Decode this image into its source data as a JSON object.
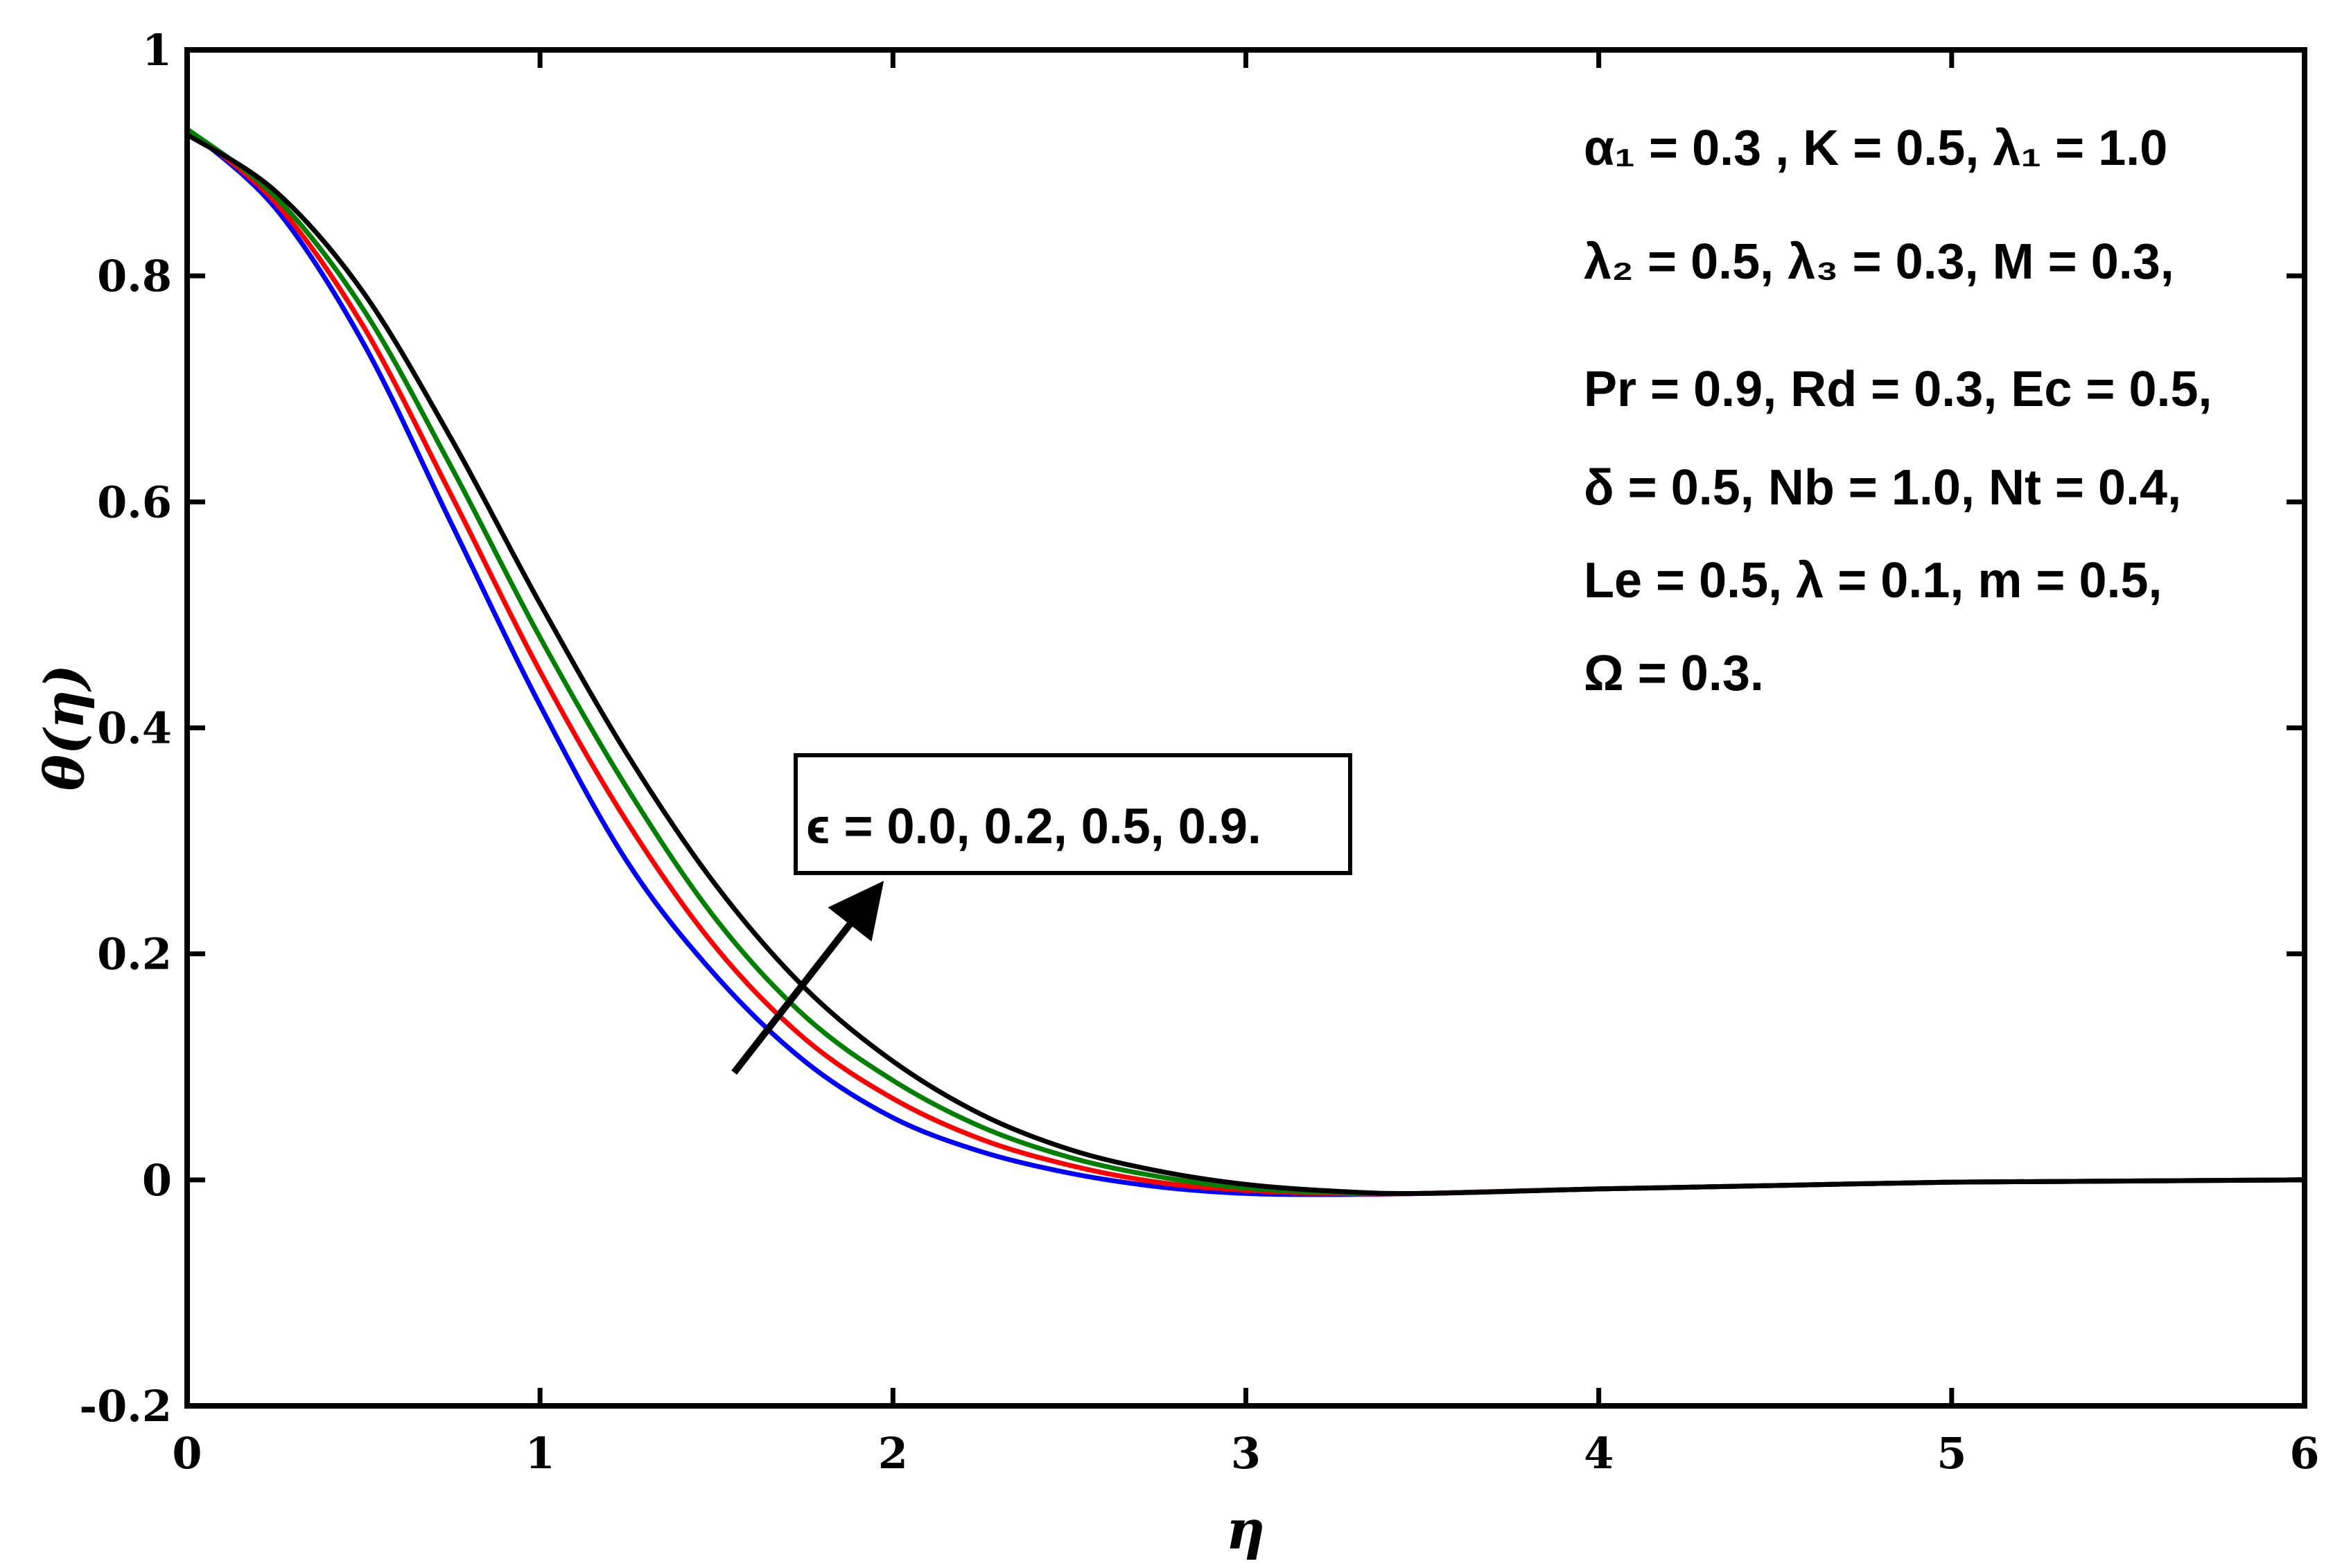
{
  "chart_data": {
    "type": "line",
    "title": "",
    "xlabel": "η",
    "ylabel": "θ(η)",
    "xlim": [
      0,
      6
    ],
    "ylim": [
      -0.2,
      1
    ],
    "xticks": [
      0,
      1,
      2,
      3,
      4,
      5,
      6
    ],
    "yticks": [
      -0.2,
      0,
      0.2,
      0.4,
      0.6,
      0.8,
      1
    ],
    "xtick_labels": [
      "0",
      "1",
      "2",
      "3",
      "4",
      "5",
      "6"
    ],
    "ytick_labels": [
      "-0.2",
      "0",
      "0.2",
      "0.4",
      "0.6",
      "0.8",
      "1"
    ],
    "grid": false,
    "series": [
      {
        "color": "#0000ff",
        "x": [
          0,
          0.25,
          0.5,
          0.75,
          1.0,
          1.25,
          1.5,
          1.75,
          2.0,
          2.25,
          2.5,
          2.75,
          3.0,
          3.25,
          3.5,
          4.0,
          4.5,
          5.0,
          5.5,
          6.0
        ],
        "y": [
          0.93,
          0.86,
          0.74,
          0.58,
          0.42,
          0.28,
          0.18,
          0.105,
          0.055,
          0.025,
          0.006,
          -0.006,
          -0.012,
          -0.013,
          -0.012,
          -0.008,
          -0.005,
          -0.002,
          -0.001,
          0
        ]
      },
      {
        "color": "#ff0000",
        "x": [
          0,
          0.25,
          0.5,
          0.75,
          1.0,
          1.25,
          1.5,
          1.75,
          2.0,
          2.25,
          2.5,
          2.75,
          3.0,
          3.25,
          3.5,
          4.0,
          4.5,
          5.0,
          5.5,
          6.0
        ],
        "y": [
          0.93,
          0.865,
          0.755,
          0.605,
          0.45,
          0.315,
          0.205,
          0.125,
          0.072,
          0.036,
          0.013,
          -0.002,
          -0.009,
          -0.012,
          -0.012,
          -0.008,
          -0.005,
          -0.002,
          -0.001,
          0
        ]
      },
      {
        "color": "#008000",
        "x": [
          0,
          0.25,
          0.5,
          0.75,
          1.0,
          1.25,
          1.5,
          1.75,
          2.0,
          2.25,
          2.5,
          2.75,
          3.0,
          3.25,
          3.5,
          4.0,
          4.5,
          5.0,
          5.5,
          6.0
        ],
        "y": [
          0.93,
          0.87,
          0.77,
          0.63,
          0.48,
          0.345,
          0.23,
          0.145,
          0.088,
          0.047,
          0.02,
          0.003,
          -0.007,
          -0.011,
          -0.012,
          -0.008,
          -0.005,
          -0.002,
          -0.001,
          0
        ]
      },
      {
        "color": "#000000",
        "x": [
          0,
          0.25,
          0.5,
          0.75,
          1.0,
          1.25,
          1.5,
          1.75,
          2.0,
          2.25,
          2.5,
          2.75,
          3.0,
          3.25,
          3.5,
          4.0,
          4.5,
          5.0,
          5.5,
          6.0
        ],
        "y": [
          0.925,
          0.875,
          0.785,
          0.655,
          0.51,
          0.375,
          0.26,
          0.17,
          0.105,
          0.058,
          0.027,
          0.008,
          -0.004,
          -0.01,
          -0.012,
          -0.008,
          -0.005,
          -0.002,
          -0.001,
          0
        ]
      }
    ],
    "annotation": {
      "callout_text": "ϵ = 0.0, 0.2, 0.5, 0.9.",
      "arrow_from": [
        1.55,
        0.095
      ],
      "arrow_to": [
        1.95,
        0.255
      ]
    },
    "parameters": {
      "line1": "α₁ = 0.3 , K = 0.5, λ₁ = 1.0",
      "line2": "λ₂ = 0.5, λ₃ = 0.3, M = 0.3,",
      "line3": "Pr = 0.9, Rd = 0.3, Ec = 0.5,",
      "line4": "δ = 0.5, Nb = 1.0, Nt = 0.4,",
      "line5": "Le = 0.5, λ = 0.1, m = 0.5,",
      "line6": "Ω = 0.3."
    }
  }
}
